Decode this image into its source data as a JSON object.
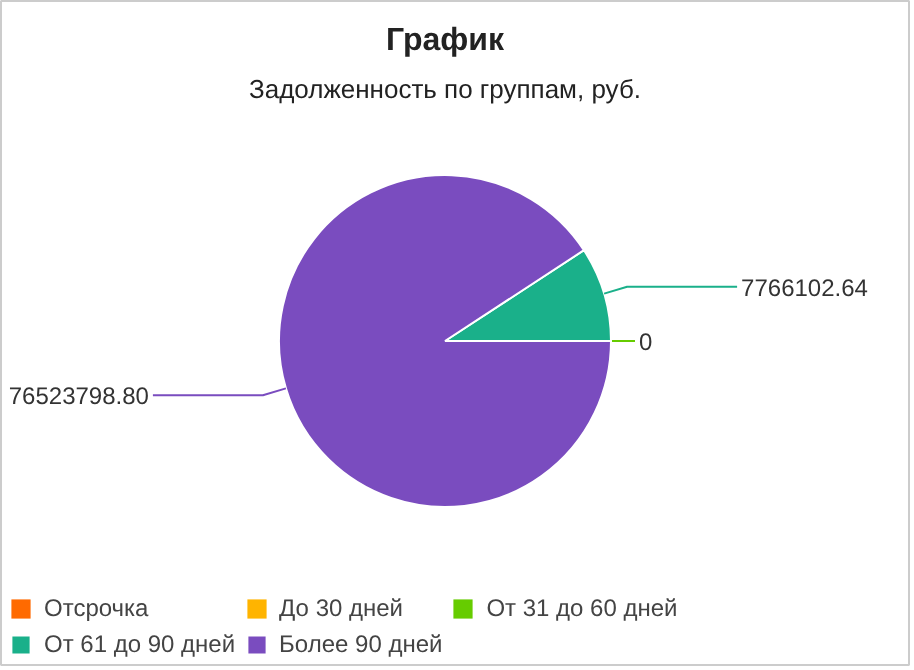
{
  "chart_data": {
    "type": "pie",
    "title": "График",
    "subtitle": "Задолженность по группам, руб.",
    "categories": [
      "Отсрочка",
      "До 30 дней",
      "От 31 до 60 дней",
      "От 61 до 90 дней",
      "Более 90 дней"
    ],
    "values": [
      0,
      0,
      0,
      7766102.64,
      76523798.8
    ],
    "value_labels": [
      null,
      null,
      "0",
      "7766102.64",
      "76523798.80"
    ],
    "colors": [
      "#ff6a00",
      "#ffb400",
      "#66cc00",
      "#1ab08a",
      "#7a4cbf"
    ],
    "legend": "bottom"
  }
}
